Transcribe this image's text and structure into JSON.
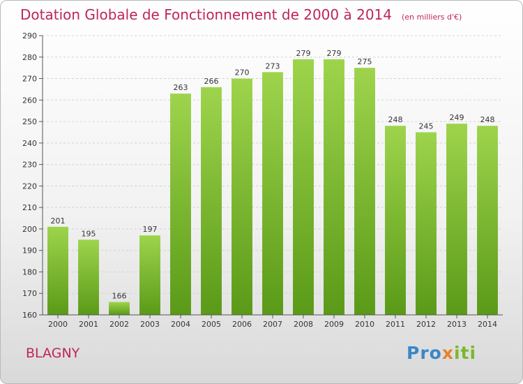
{
  "chart_data": {
    "type": "bar",
    "title": "Dotation Globale de Fonctionnement de 2000 à 2014",
    "subtitle": "(en milliers d'€)",
    "categories": [
      "2000",
      "2001",
      "2002",
      "2003",
      "2004",
      "2005",
      "2006",
      "2007",
      "2008",
      "2009",
      "2010",
      "2011",
      "2012",
      "2013",
      "2014"
    ],
    "values": [
      201,
      195,
      166,
      197,
      263,
      266,
      270,
      273,
      279,
      279,
      275,
      248,
      245,
      249,
      248
    ],
    "xlabel": "",
    "ylabel": "",
    "ylim": [
      160,
      290
    ],
    "yticks": [
      160,
      170,
      180,
      190,
      200,
      210,
      220,
      230,
      240,
      250,
      260,
      270,
      280,
      290
    ],
    "grid": true,
    "bar_color": "#7ab82e"
  },
  "footer": {
    "city": "BLAGNY",
    "logo_parts": [
      "Pro",
      "x",
      "iti"
    ]
  }
}
